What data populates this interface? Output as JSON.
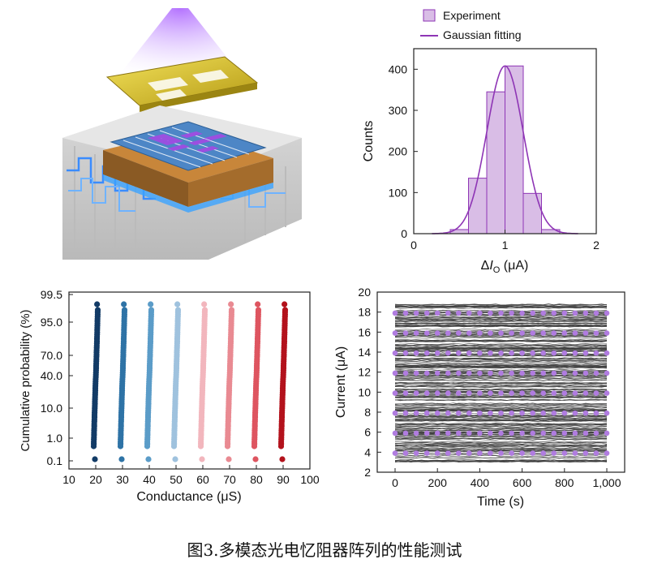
{
  "figure": {
    "caption": "图3.多模态光电忆阻器阵列的性能测试"
  },
  "colors": {
    "purple": "#8e35b5",
    "hist_fill": "#d9bde6",
    "line_gray": "#3c3c3c",
    "marker_purple": "#b07ce0",
    "cond_series": [
      "#123b66",
      "#2e73a6",
      "#5b9cc8",
      "#9fc2de",
      "#f2b6bd",
      "#e98a92",
      "#de5560",
      "#b3121c"
    ]
  },
  "illustration": {
    "icons": [
      "light-beam-icon",
      "electrode-icon",
      "memristor-chip-icon",
      "circuit-board-icon"
    ]
  },
  "chart_data": [
    {
      "type": "bar",
      "subtype": "histogram",
      "legend": [
        "Experiment",
        "Gaussian fitting"
      ],
      "legend_position": "top-left",
      "xlabel": "ΔIO (μA)",
      "ylabel": "Counts",
      "xlim": [
        0,
        2
      ],
      "ylim": [
        0,
        450
      ],
      "xticks": [
        "0",
        "1",
        "2"
      ],
      "yticks": [
        "0",
        "100",
        "200",
        "300",
        "400"
      ],
      "bin_edges": [
        0.4,
        0.6,
        0.8,
        1.0,
        1.2,
        1.4,
        1.6
      ],
      "counts": [
        10,
        135,
        345,
        408,
        98,
        10
      ],
      "gaussian": {
        "mean": 1.0,
        "sigma": 0.2,
        "peak": 408
      }
    },
    {
      "type": "scatter",
      "subtype": "cumulative-probability",
      "xlabel": "Conductance (μS)",
      "ylabel": "Cumulative probability (%)",
      "xlim": [
        10,
        100
      ],
      "xticks": [
        "10",
        "20",
        "30",
        "40",
        "50",
        "60",
        "70",
        "80",
        "90",
        "100"
      ],
      "yticks": [
        "0.1",
        "1.0",
        "10.0",
        "40.0",
        "70.0",
        "95.0",
        "99.5"
      ],
      "series_centers": [
        20,
        30,
        40,
        50,
        60,
        70,
        80,
        90
      ],
      "spread": 1.0
    },
    {
      "type": "line",
      "xlabel": "Time (s)",
      "ylabel": "Current (μA)",
      "xlim": [
        0,
        1000
      ],
      "ylim": [
        2,
        20
      ],
      "xticks": [
        "0",
        "200",
        "400",
        "600",
        "800",
        "1,000"
      ],
      "yticks": [
        "2",
        "4",
        "6",
        "8",
        "10",
        "12",
        "14",
        "16",
        "18",
        "20"
      ],
      "levels": [
        4,
        6,
        8,
        10,
        12,
        14,
        16,
        18
      ],
      "marker_times": [
        0,
        50,
        100,
        150,
        200,
        250,
        300,
        350,
        400,
        450,
        500,
        550,
        600,
        650,
        700,
        750,
        800,
        850,
        900,
        950,
        1000
      ]
    }
  ]
}
